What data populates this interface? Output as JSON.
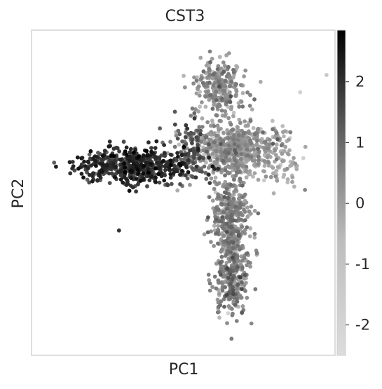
{
  "chart_data": {
    "type": "scatter",
    "title": "CST3",
    "xlabel": "PC1",
    "ylabel": "PC2",
    "xticks": [],
    "yticks": [],
    "grid": false,
    "colormap": "gray_r",
    "colorbar": {
      "orientation": "vertical",
      "position": "right",
      "range": [
        -2.5,
        2.85
      ],
      "ticks": [
        {
          "value": 2,
          "label": "2"
        },
        {
          "value": 1,
          "label": "1"
        },
        {
          "value": 0,
          "label": "0"
        },
        {
          "value": -1,
          "label": "-1"
        },
        {
          "value": -2,
          "label": "-2"
        }
      ]
    },
    "xlim": [
      0,
      1
    ],
    "ylim": [
      0,
      1
    ],
    "clusters": [
      {
        "name": "",
        "cx": 0.33,
        "cy": 0.585,
        "sx": 0.095,
        "sy": 0.028,
        "n": 520,
        "v_mean": 1.55,
        "v_sd": 0.55
      },
      {
        "name": "",
        "cx": 0.62,
        "cy": 0.835,
        "sx": 0.045,
        "sy": 0.04,
        "n": 240,
        "v_mean": -0.7,
        "v_sd": 0.6
      },
      {
        "name": "",
        "cx": 0.67,
        "cy": 0.64,
        "sx": 0.07,
        "sy": 0.045,
        "n": 620,
        "v_mean": -0.95,
        "v_sd": 0.5
      },
      {
        "name": "",
        "cx": 0.66,
        "cy": 0.42,
        "sx": 0.03,
        "sy": 0.075,
        "n": 420,
        "v_mean": -0.65,
        "v_sd": 0.6
      },
      {
        "name": "",
        "cx": 0.665,
        "cy": 0.23,
        "sx": 0.03,
        "sy": 0.06,
        "n": 250,
        "v_mean": -0.55,
        "v_sd": 0.65
      },
      {
        "name": "",
        "cx": 0.52,
        "cy": 0.63,
        "sx": 0.035,
        "sy": 0.05,
        "n": 120,
        "v_mean": 0.5,
        "v_sd": 0.7
      },
      {
        "name": "",
        "cx": 0.82,
        "cy": 0.6,
        "sx": 0.05,
        "sy": 0.05,
        "n": 90,
        "v_mean": -1.35,
        "v_sd": 0.4
      }
    ],
    "outliers": [
      {
        "x": 0.28,
        "y": 0.38,
        "v": 1.6
      },
      {
        "x": 0.665,
        "y": 0.035,
        "v": -0.2
      },
      {
        "x": 0.99,
        "y": 0.875,
        "v": -2.0
      },
      {
        "x": 0.6,
        "y": 0.875,
        "v": -1.4
      },
      {
        "x": 0.42,
        "y": 0.705,
        "v": 0.6
      },
      {
        "x": 0.9,
        "y": 0.82,
        "v": -2.2
      }
    ]
  }
}
